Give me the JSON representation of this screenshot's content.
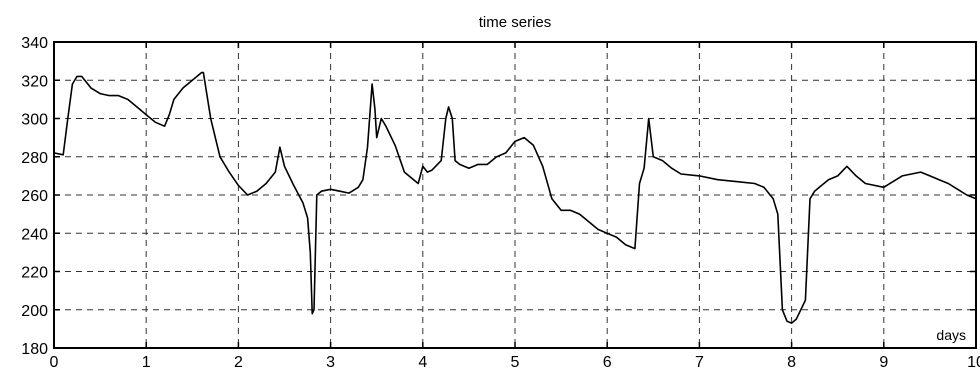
{
  "chart_data": {
    "type": "line",
    "title": "time series",
    "xlabel": "",
    "ylabel": "",
    "annotation": "days",
    "xlim": [
      0,
      10
    ],
    "ylim": [
      180,
      340
    ],
    "grid": true,
    "x_ticks": [
      0,
      1,
      2,
      3,
      4,
      5,
      6,
      7,
      8,
      9,
      10
    ],
    "y_ticks": [
      180,
      200,
      220,
      240,
      260,
      280,
      300,
      320,
      340
    ],
    "series": [
      {
        "x": [
          0,
          0.1,
          0.15,
          0.2,
          0.25,
          0.3,
          0.4,
          0.5,
          0.6,
          0.7,
          0.8,
          0.9,
          1.0,
          1.1,
          1.2,
          1.25,
          1.3,
          1.4,
          1.5,
          1.6,
          1.62,
          1.7,
          1.75,
          1.8,
          1.9,
          2.0,
          2.1,
          2.2,
          2.3,
          2.4,
          2.45,
          2.5,
          2.55,
          2.6,
          2.7,
          2.75,
          2.78,
          2.8,
          2.82,
          2.85,
          2.9,
          3.0,
          3.1,
          3.2,
          3.3,
          3.35,
          3.4,
          3.45,
          3.48,
          3.5,
          3.55,
          3.6,
          3.7,
          3.8,
          3.9,
          3.95,
          4.0,
          4.05,
          4.1,
          4.2,
          4.25,
          4.28,
          4.32,
          4.35,
          4.4,
          4.5,
          4.6,
          4.7,
          4.8,
          4.9,
          5.0,
          5.1,
          5.2,
          5.3,
          5.4,
          5.5,
          5.6,
          5.7,
          5.8,
          5.9,
          6.0,
          6.1,
          6.2,
          6.3,
          6.35,
          6.4,
          6.45,
          6.5,
          6.6,
          6.7,
          6.8,
          7.0,
          7.2,
          7.4,
          7.6,
          7.7,
          7.8,
          7.85,
          7.9,
          7.95,
          8.0,
          8.05,
          8.1,
          8.15,
          8.2,
          8.25,
          8.3,
          8.4,
          8.5,
          8.6,
          8.7,
          8.8,
          9.0,
          9.2,
          9.4,
          9.5,
          9.6,
          9.7,
          9.8,
          9.9,
          10.0
        ],
        "values": [
          282,
          281,
          300,
          318,
          322,
          322,
          316,
          313,
          312,
          312,
          310,
          306,
          302,
          298,
          296,
          302,
          310,
          316,
          320,
          324,
          324,
          300,
          290,
          280,
          272,
          265,
          260,
          262,
          266,
          272,
          285,
          275,
          270,
          265,
          256,
          248,
          230,
          198,
          200,
          260,
          262,
          263,
          262,
          261,
          264,
          268,
          285,
          318,
          305,
          290,
          300,
          296,
          286,
          272,
          268,
          266,
          275,
          272,
          273,
          278,
          300,
          306,
          300,
          278,
          276,
          274,
          276,
          276,
          280,
          282,
          288,
          290,
          286,
          275,
          258,
          252,
          252,
          250,
          246,
          242,
          240,
          238,
          234,
          232,
          266,
          274,
          300,
          280,
          278,
          274,
          271,
          270,
          268,
          267,
          266,
          264,
          258,
          250,
          200,
          194,
          193,
          195,
          200,
          205,
          258,
          262,
          264,
          268,
          270,
          275,
          270,
          266,
          264,
          270,
          272,
          270,
          268,
          266,
          263,
          260,
          258
        ]
      }
    ]
  }
}
